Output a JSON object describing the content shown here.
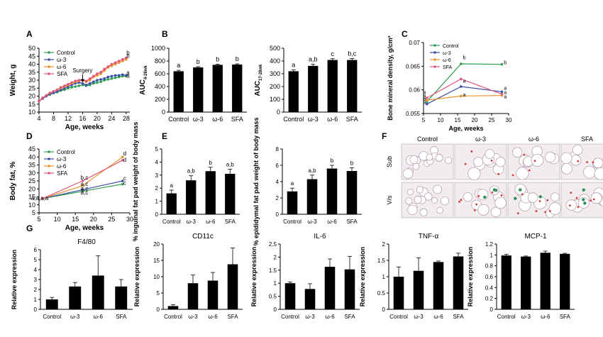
{
  "panel_letters": [
    "A",
    "B",
    "C",
    "D",
    "E",
    "F",
    "G"
  ],
  "chart_data": [
    {
      "id": "A",
      "type": "line",
      "xlabel": "Age, weeks",
      "ylabel": "Weight, g",
      "xlim": [
        4,
        29
      ],
      "ylim": [
        10,
        50
      ],
      "xticks": [
        4,
        8,
        12,
        16,
        20,
        24,
        28
      ],
      "yticks": [
        10,
        15,
        20,
        25,
        30,
        35,
        40,
        45,
        50
      ],
      "x": [
        4,
        5,
        6,
        7,
        8,
        9,
        10,
        11,
        12,
        13,
        14,
        15,
        16,
        17,
        18,
        19,
        20,
        21,
        22,
        23,
        24,
        25,
        26,
        27,
        28
      ],
      "series": [
        {
          "name": "Control",
          "color": "#2e9e4f",
          "marker": "circle",
          "values": [
            17,
            18.5,
            20,
            21,
            22,
            22.5,
            23.5,
            24,
            25,
            25.5,
            26,
            26.5,
            27,
            26.5,
            27,
            28,
            28.5,
            29,
            30,
            30.5,
            31,
            31.5,
            32,
            32.5,
            32.5
          ]
        },
        {
          "name": "ω-3",
          "color": "#3a4fa8",
          "marker": "circle",
          "values": [
            17,
            18.5,
            20,
            21.5,
            22,
            23,
            24,
            25,
            26,
            27,
            28,
            28.5,
            28,
            27,
            28,
            29,
            30,
            30.5,
            31,
            32,
            32.5,
            33,
            33,
            33.5,
            33
          ]
        },
        {
          "name": "ω-6",
          "color": "#e8932a",
          "marker": "circle",
          "values": [
            17,
            19,
            20.5,
            22,
            23,
            24,
            25,
            26,
            27,
            28,
            29,
            29.5,
            30,
            29,
            30,
            32,
            33,
            34,
            36,
            38,
            39,
            40,
            41,
            42,
            43
          ]
        },
        {
          "name": "SFA",
          "color": "#e0577a",
          "marker": "circle",
          "values": [
            17,
            19,
            20.5,
            22,
            23,
            24,
            25.5,
            26.5,
            27.5,
            28.5,
            29.5,
            30,
            30,
            29.5,
            31,
            32.5,
            34,
            35,
            37,
            38.5,
            40,
            41,
            42,
            43,
            44
          ]
        }
      ],
      "annotations": [
        {
          "text": "Surgery",
          "x": 16,
          "y": 35
        },
        {
          "text": "b",
          "x": 28.5,
          "y": 46
        },
        {
          "text": "b",
          "x": 28.5,
          "y": 44
        },
        {
          "text": "a",
          "x": 28.5,
          "y": 33.5
        },
        {
          "text": "a",
          "x": 28.5,
          "y": 31.5
        }
      ]
    },
    {
      "id": "B1",
      "type": "bar",
      "ylabel": "AUC",
      "ylabel_sub": "4-28wk",
      "categories": [
        "Control",
        "ω-3",
        "ω-6",
        "SFA"
      ],
      "values": [
        640,
        700,
        740,
        745
      ],
      "errors": [
        15,
        12,
        10,
        10
      ],
      "letters": [
        "a",
        "b",
        "b",
        "b"
      ],
      "ylim": [
        0,
        1000
      ],
      "yticks": [
        0,
        200,
        400,
        600,
        800,
        1000
      ]
    },
    {
      "id": "B2",
      "type": "bar",
      "ylabel": "AUC",
      "ylabel_sub": "17-28wk",
      "categories": [
        "Control",
        "ω-3",
        "ω-6",
        "SFA"
      ],
      "values": [
        320,
        362,
        408,
        408
      ],
      "errors": [
        10,
        12,
        10,
        12
      ],
      "letters": [
        "a",
        "a,b",
        "c",
        "b,c"
      ],
      "ylim": [
        0,
        500
      ],
      "yticks": [
        0,
        100,
        200,
        300,
        400,
        500
      ]
    },
    {
      "id": "C",
      "type": "line",
      "xlabel": "Age, weeks",
      "ylabel": "Bone mineral density, g/cm²",
      "xlim": [
        5,
        30
      ],
      "ylim": [
        0.055,
        0.07
      ],
      "xticks": [
        5,
        10,
        15,
        20,
        25,
        30
      ],
      "yticks": [
        0.055,
        0.06,
        0.065,
        0.07
      ],
      "x": [
        6,
        16,
        28
      ],
      "series": [
        {
          "name": "Control",
          "color": "#2e9e4f",
          "marker": "circle",
          "values": [
            0.0575,
            0.0655,
            0.0654
          ]
        },
        {
          "name": "ω-3",
          "color": "#3a4fa8",
          "marker": "circle",
          "values": [
            0.057,
            0.0607,
            0.0596
          ]
        },
        {
          "name": "ω-6",
          "color": "#e8932a",
          "marker": "circle",
          "values": [
            0.0578,
            0.0587,
            0.0588
          ]
        },
        {
          "name": "SFA",
          "color": "#e0577a",
          "marker": "circle",
          "values": [
            0.0583,
            0.0623,
            0.0591
          ]
        }
      ],
      "annotations": [
        {
          "text": "b",
          "x": 17,
          "y": 0.0665
        },
        {
          "text": "b",
          "x": 29,
          "y": 0.0654
        },
        {
          "text": "a",
          "x": 17,
          "y": 0.0615
        },
        {
          "text": "a",
          "x": 17,
          "y": 0.0586
        },
        {
          "text": "a",
          "x": 29,
          "y": 0.06
        },
        {
          "text": "a",
          "x": 29,
          "y": 0.0591
        },
        {
          "text": "a",
          "x": 29,
          "y": 0.0582
        },
        {
          "text": "a",
          "x": 5.3,
          "y": 0.0591
        },
        {
          "text": "a",
          "x": 5.3,
          "y": 0.0584
        },
        {
          "text": "a",
          "x": 5.3,
          "y": 0.0577
        },
        {
          "text": "a",
          "x": 5.3,
          "y": 0.057
        }
      ]
    },
    {
      "id": "D",
      "type": "line",
      "xlabel": "Age, weeks",
      "ylabel": "Body fat, %",
      "xlim": [
        5,
        30
      ],
      "ylim": [
        5,
        45
      ],
      "xticks": [
        5,
        10,
        15,
        20,
        25,
        30
      ],
      "yticks": [
        5,
        10,
        15,
        20,
        25,
        30,
        35,
        40,
        45
      ],
      "x": [
        6,
        17,
        28
      ],
      "series": [
        {
          "name": "Control",
          "color": "#2e9e4f",
          "marker": "circle",
          "values": [
            14,
            18.5,
            23
          ]
        },
        {
          "name": "ω-3",
          "color": "#3a4fa8",
          "marker": "circle",
          "values": [
            14,
            19.5,
            25
          ]
        },
        {
          "name": "ω-6",
          "color": "#e8932a",
          "marker": "circle",
          "values": [
            14,
            22,
            40
          ]
        },
        {
          "name": "SFA",
          "color": "#e0577a",
          "marker": "circle",
          "values": [
            14,
            25,
            38
          ]
        }
      ],
      "annotations": [
        {
          "text": "d",
          "x": 28.6,
          "y": 41
        },
        {
          "text": "d",
          "x": 28.6,
          "y": 37
        },
        {
          "text": "c",
          "x": 28.6,
          "y": 25.5
        },
        {
          "text": "c",
          "x": 28.6,
          "y": 22.5
        },
        {
          "text": "b,c",
          "x": 17.5,
          "y": 26
        },
        {
          "text": "a,c",
          "x": 17.5,
          "y": 22
        },
        {
          "text": "a,c",
          "x": 17.5,
          "y": 19
        },
        {
          "text": "a,c",
          "x": 17.5,
          "y": 16.5
        },
        {
          "text": "a,a,a,a",
          "x": 5.2,
          "y": 13
        }
      ]
    },
    {
      "id": "E1",
      "type": "bar",
      "ylabel": "% inguinal fat pad weight of body mass",
      "categories": [
        "Control",
        "ω-3",
        "ω-6",
        "SFA"
      ],
      "values": [
        1.6,
        2.6,
        3.3,
        3.1
      ],
      "errors": [
        0.25,
        0.35,
        0.3,
        0.35
      ],
      "letters": [
        "a",
        "a,b",
        "b",
        "a,b"
      ],
      "ylim": [
        0,
        5
      ],
      "yticks": [
        0,
        1,
        2,
        3,
        4,
        5
      ]
    },
    {
      "id": "E2",
      "type": "bar",
      "ylabel": "% epididymal fat pad weight of body mass",
      "categories": [
        "Control",
        "ω-3",
        "ω-6",
        "SFA"
      ],
      "values": [
        2.8,
        4.3,
        5.6,
        5.3
      ],
      "errors": [
        0.4,
        0.5,
        0.4,
        0.4
      ],
      "letters": [
        "a",
        "a,b",
        "b",
        "b"
      ],
      "ylim": [
        0,
        8
      ],
      "yticks": [
        0,
        2,
        4,
        6,
        8
      ]
    },
    {
      "id": "G1",
      "type": "bar",
      "title": "F4/80",
      "ylabel": "Relative expression",
      "categories": [
        "Control",
        "ω-3",
        "ω-6",
        "SFA"
      ],
      "values": [
        1.0,
        2.3,
        3.4,
        2.3
      ],
      "errors": [
        0.2,
        0.4,
        2.0,
        0.7
      ],
      "ylim": [
        0,
        6
      ],
      "yticks": [
        0,
        1,
        2,
        3,
        4,
        5,
        6
      ]
    },
    {
      "id": "G2",
      "type": "bar",
      "title": "CD11c",
      "ylabel": "Relative expression",
      "categories": [
        "Control",
        "ω-3",
        "ω-6",
        "SFA"
      ],
      "values": [
        1.0,
        8.0,
        8.8,
        13.8
      ],
      "errors": [
        0.4,
        2.5,
        2.5,
        5.0
      ],
      "ylim": [
        0,
        20
      ],
      "yticks": [
        0,
        5,
        10,
        15,
        20
      ]
    },
    {
      "id": "G3",
      "type": "bar",
      "title": "IL-6",
      "ylabel": "Relative expression",
      "categories": [
        "Control",
        "ω-3",
        "ω-6",
        "SFA"
      ],
      "values": [
        1.0,
        0.78,
        1.63,
        1.53
      ],
      "errors": [
        0.05,
        0.2,
        0.3,
        0.5
      ],
      "ylim": [
        0,
        2.5
      ],
      "yticks": [
        0,
        0.5,
        1.0,
        1.5,
        2.0,
        2.5
      ]
    },
    {
      "id": "G4",
      "type": "bar",
      "title": "TNF-α",
      "ylabel": "Relative expression",
      "categories": [
        "Control",
        "ω-3",
        "ω-6",
        "SFA"
      ],
      "values": [
        1.0,
        1.18,
        1.45,
        1.62
      ],
      "errors": [
        0.3,
        0.4,
        0.03,
        0.1
      ],
      "ylim": [
        0,
        2.0
      ],
      "yticks": [
        0,
        0.5,
        1.0,
        1.5,
        2.0
      ]
    },
    {
      "id": "G5",
      "type": "bar",
      "title": "MCP-1",
      "ylabel": "Relative expression",
      "categories": [
        "Control",
        "ω-3",
        "ω-6",
        "SFA"
      ],
      "values": [
        0.99,
        0.97,
        1.04,
        1.02
      ],
      "errors": [
        0.02,
        0.01,
        0.03,
        0.01
      ],
      "ylim": [
        0,
        1.2
      ],
      "yticks": [
        0,
        0.2,
        0.4,
        0.6,
        0.8,
        1.0,
        1.2
      ]
    }
  ],
  "histology": {
    "columns": [
      "Control",
      "ω-3",
      "ω-6",
      "SFA"
    ],
    "rows": [
      "Sub",
      "V/s"
    ]
  }
}
